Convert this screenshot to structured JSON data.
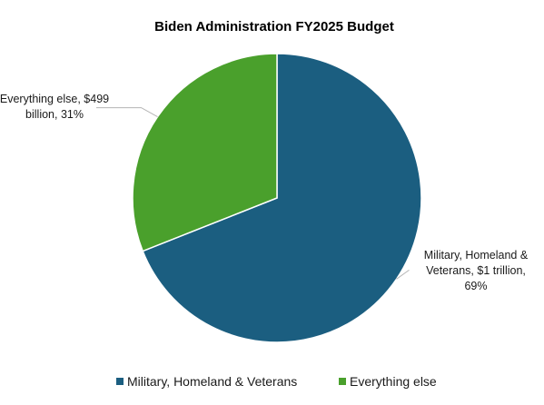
{
  "chart_data": {
    "type": "pie",
    "title": "Biden Administration FY2025 Budget",
    "categories": [
      "Military, Homeland & Veterans",
      "Everything else"
    ],
    "values": [
      69,
      31
    ],
    "series": [
      {
        "name": "Military, Homeland & Veterans",
        "value": 69,
        "color": "#1b5e80",
        "label_lines": [
          "Military, Homeland &",
          "Veterans, $1 trillion,",
          "69%"
        ]
      },
      {
        "name": "Everything else",
        "value": 31,
        "color": "#4aa02c",
        "label_lines": [
          "Everything else, $499",
          "billion, 31%"
        ]
      }
    ],
    "legend_position": "bottom",
    "start_angle": "12 o'clock",
    "direction": "clockwise"
  }
}
